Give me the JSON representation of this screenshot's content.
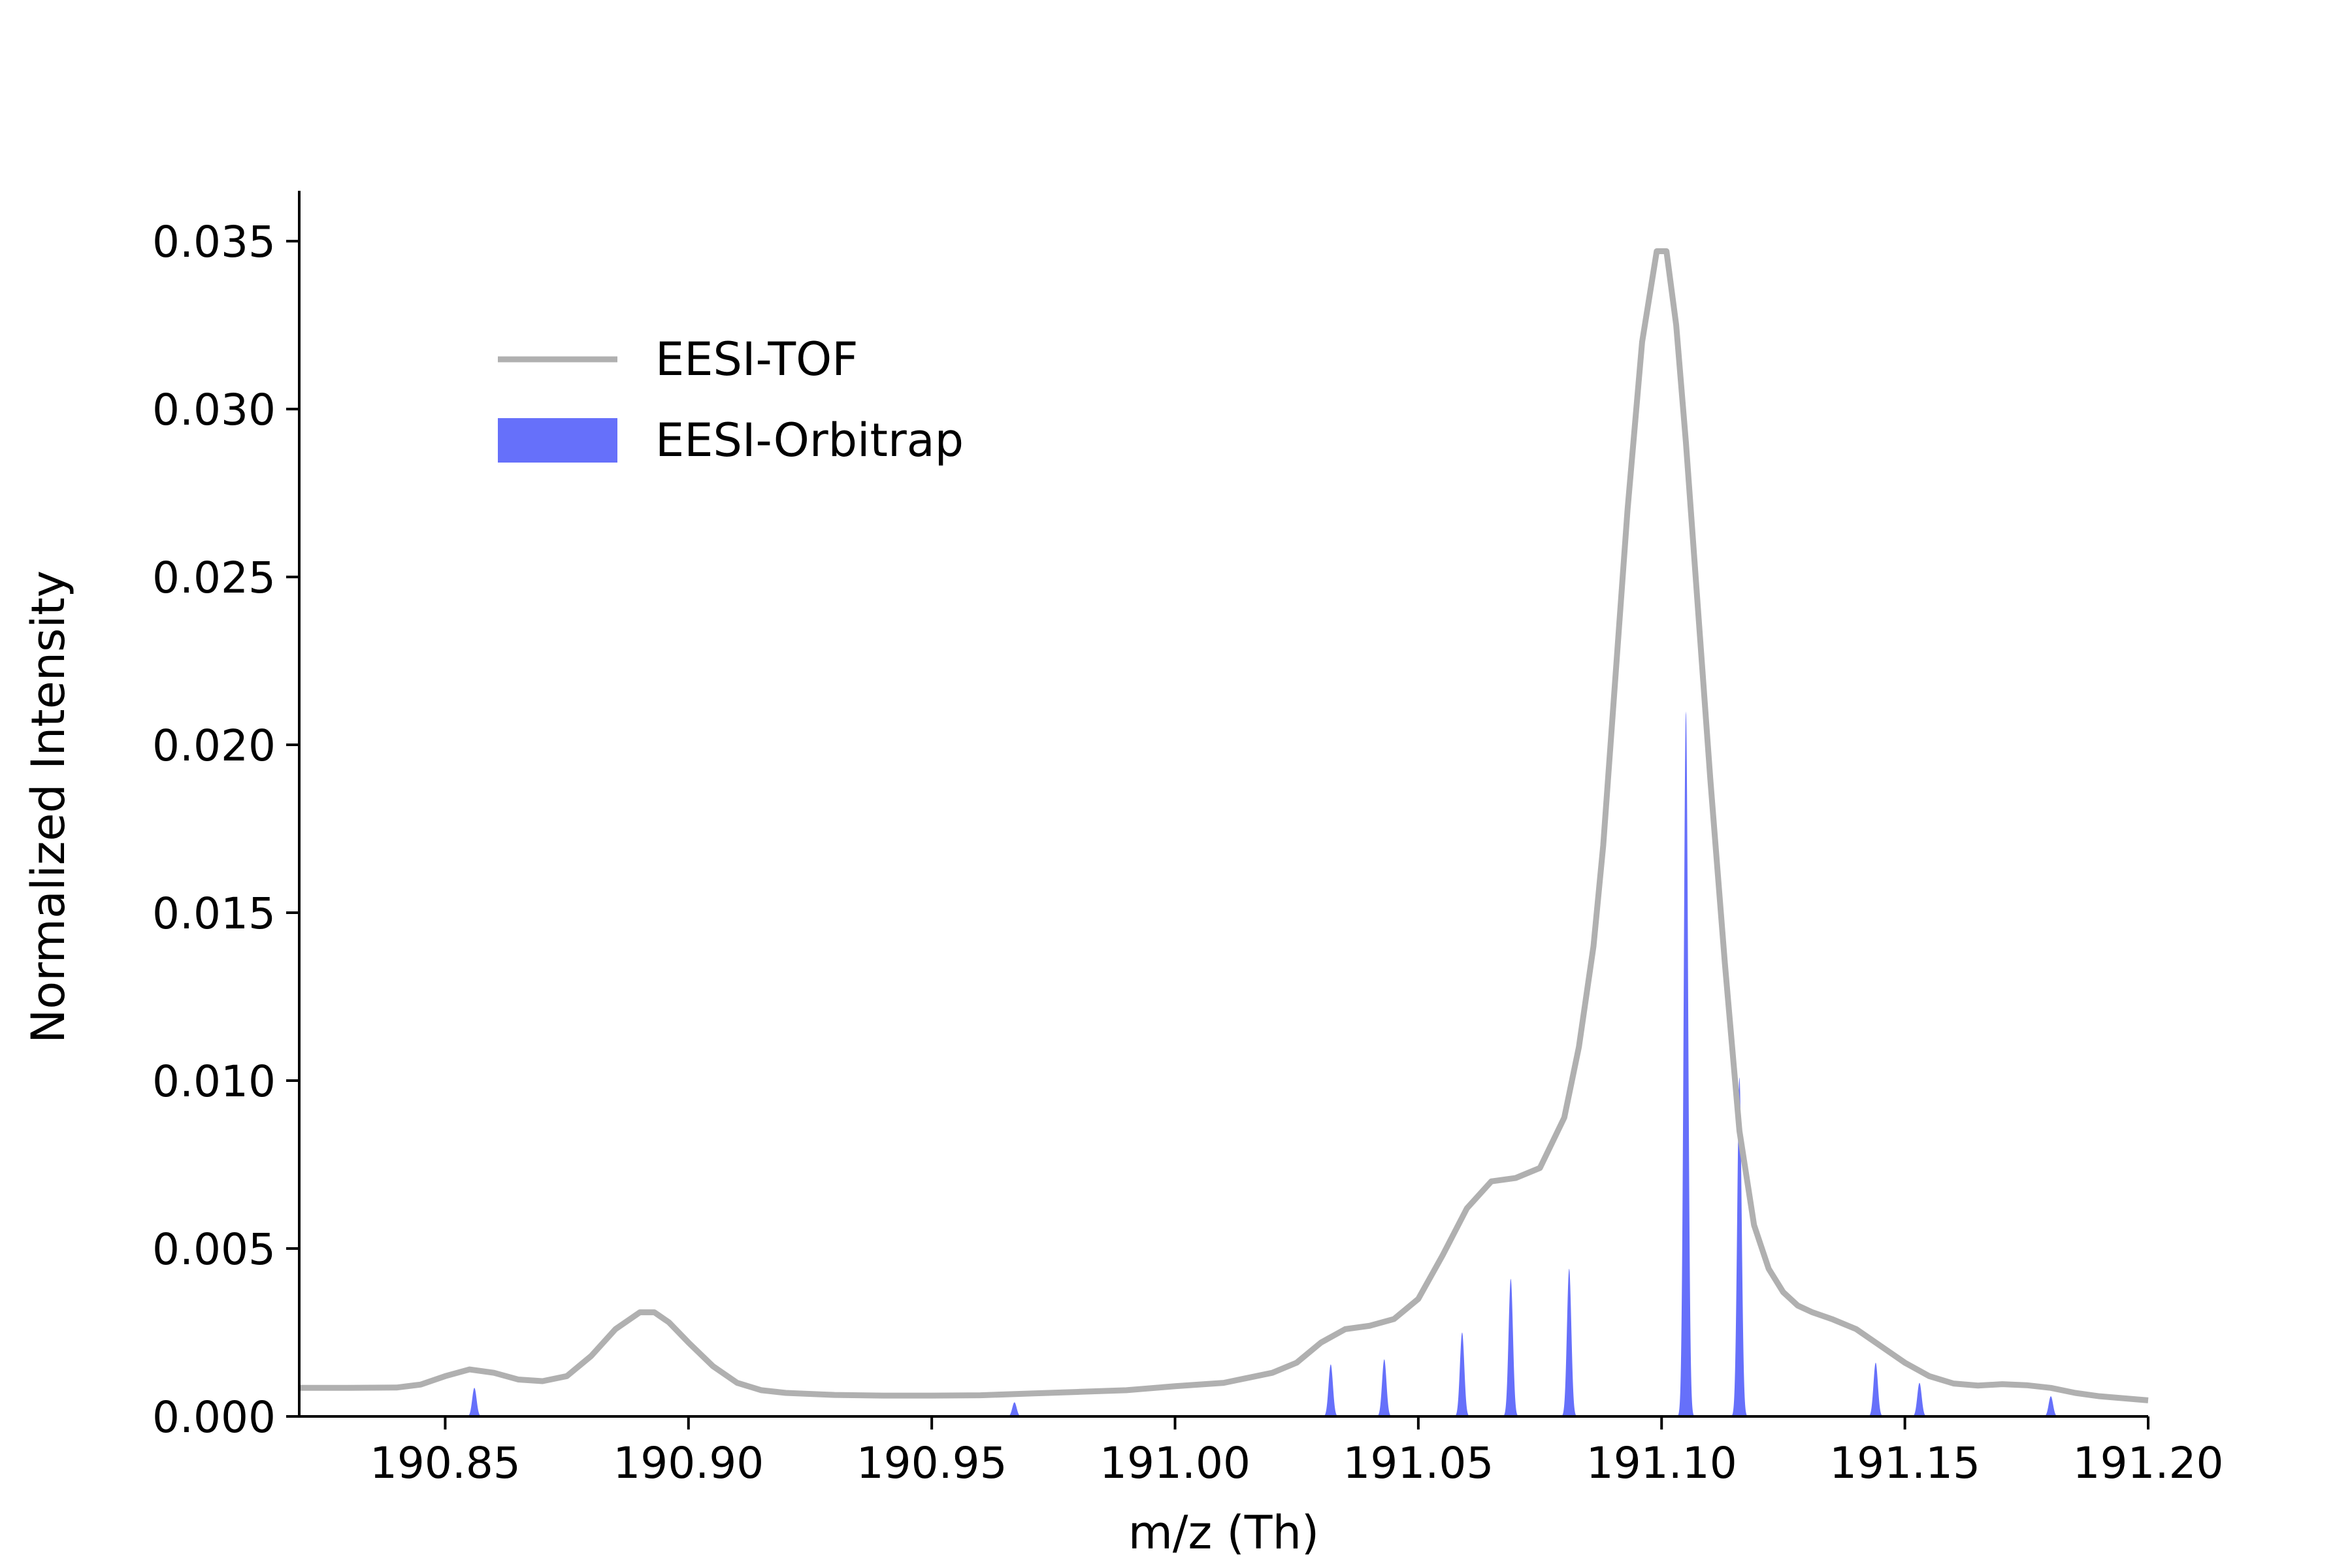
{
  "chart_data": {
    "type": "line",
    "xlabel": "m/z (Th)",
    "ylabel": "Normalized Intensity",
    "xlim": [
      190.82,
      191.2
    ],
    "ylim": [
      0.0,
      0.0365
    ],
    "x_ticks": [
      "190.85",
      "190.90",
      "190.95",
      "191.00",
      "191.05",
      "191.10",
      "191.15",
      "191.20"
    ],
    "y_ticks": [
      "0.000",
      "0.005",
      "0.010",
      "0.015",
      "0.020",
      "0.025",
      "0.030",
      "0.035"
    ],
    "legend_position": "upper-left",
    "grid": false,
    "colors": {
      "tof": "#b0b0b0",
      "orbitrap": "#6670fa"
    },
    "series": [
      {
        "name": "EESI-TOF",
        "style": "line",
        "x": [
          190.82,
          190.83,
          190.84,
          190.845,
          190.85,
          190.855,
          190.86,
          190.865,
          190.87,
          190.875,
          190.88,
          190.885,
          190.89,
          190.893,
          190.896,
          190.9,
          190.905,
          190.91,
          190.915,
          190.92,
          190.93,
          190.94,
          190.95,
          190.96,
          190.97,
          190.98,
          190.99,
          191.0,
          191.01,
          191.02,
          191.025,
          191.03,
          191.035,
          191.04,
          191.045,
          191.05,
          191.055,
          191.06,
          191.065,
          191.07,
          191.075,
          191.08,
          191.083,
          191.086,
          191.088,
          191.09,
          191.093,
          191.096,
          191.099,
          191.101,
          191.103,
          191.105,
          191.107,
          191.11,
          191.113,
          191.116,
          191.119,
          191.122,
          191.125,
          191.128,
          191.131,
          191.135,
          191.14,
          191.145,
          191.15,
          191.155,
          191.16,
          191.165,
          191.17,
          191.175,
          191.18,
          191.185,
          191.19,
          191.2
        ],
        "y": [
          0.00085,
          0.00085,
          0.00086,
          0.00095,
          0.0012,
          0.0014,
          0.0013,
          0.0011,
          0.00105,
          0.0012,
          0.0018,
          0.0026,
          0.0031,
          0.0031,
          0.0028,
          0.0022,
          0.0015,
          0.001,
          0.00078,
          0.0007,
          0.00064,
          0.00062,
          0.00062,
          0.00063,
          0.00068,
          0.00073,
          0.00078,
          0.0009,
          0.001,
          0.0013,
          0.0016,
          0.0022,
          0.0026,
          0.0027,
          0.0029,
          0.0035,
          0.0048,
          0.0062,
          0.007,
          0.0071,
          0.0074,
          0.0089,
          0.011,
          0.014,
          0.017,
          0.021,
          0.027,
          0.032,
          0.0347,
          0.0347,
          0.0325,
          0.029,
          0.025,
          0.019,
          0.0135,
          0.0085,
          0.0057,
          0.0044,
          0.0037,
          0.0033,
          0.0031,
          0.0029,
          0.0026,
          0.0021,
          0.0016,
          0.0012,
          0.00098,
          0.00092,
          0.00096,
          0.00093,
          0.00085,
          0.0007,
          0.0006,
          0.00048
        ]
      },
      {
        "name": "EESI-Orbitrap",
        "style": "filled-peaks",
        "peaks": [
          {
            "mz": 190.856,
            "intensity": 0.00085
          },
          {
            "mz": 190.894,
            "intensity": 3e-05
          },
          {
            "mz": 190.967,
            "intensity": 0.00042
          },
          {
            "mz": 191.032,
            "intensity": 0.00155
          },
          {
            "mz": 191.043,
            "intensity": 0.0017
          },
          {
            "mz": 191.059,
            "intensity": 0.0025
          },
          {
            "mz": 191.069,
            "intensity": 0.0041
          },
          {
            "mz": 191.081,
            "intensity": 0.0044
          },
          {
            "mz": 191.105,
            "intensity": 0.021
          },
          {
            "mz": 191.116,
            "intensity": 0.0101
          },
          {
            "mz": 191.144,
            "intensity": 0.0016
          },
          {
            "mz": 191.153,
            "intensity": 0.001
          },
          {
            "mz": 191.18,
            "intensity": 0.0006
          }
        ]
      }
    ]
  }
}
